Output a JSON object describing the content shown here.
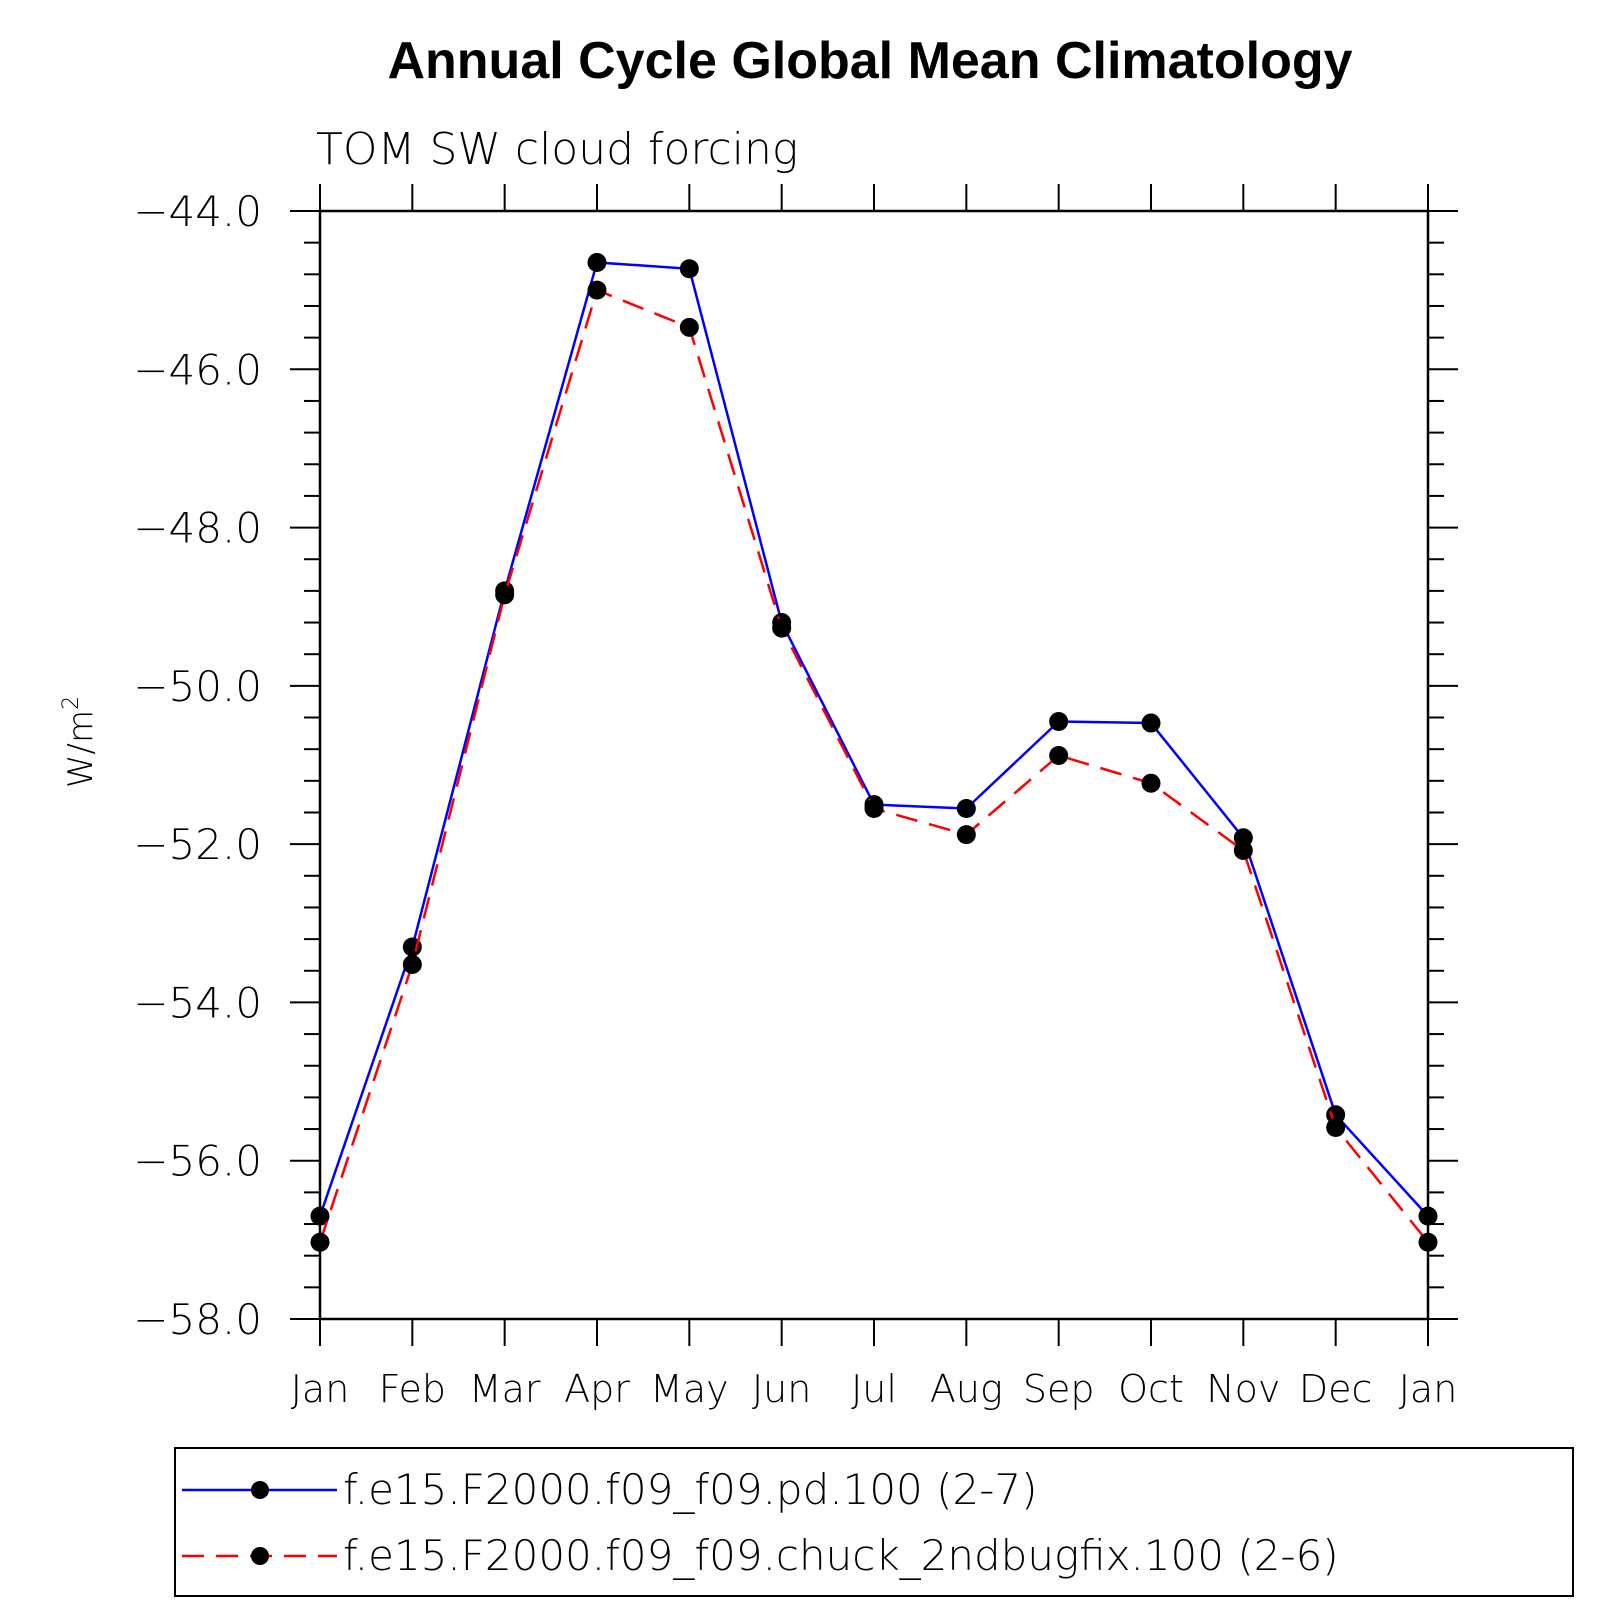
{
  "chart_data": {
    "type": "line",
    "title": "Annual Cycle Global Mean Climatology",
    "subtitle": "TOM SW cloud forcing",
    "ylabel_base": "W/m",
    "ylabel_sup": "2",
    "xlabel": "",
    "categories": [
      "Jan",
      "Feb",
      "Mar",
      "Apr",
      "May",
      "Jun",
      "Jul",
      "Aug",
      "Sep",
      "Oct",
      "Nov",
      "Dec",
      "Jan"
    ],
    "ylim": [
      -58.0,
      -44.0
    ],
    "yticks": [
      "-44.0",
      "-46.0",
      "-48.0",
      "-50.0",
      "-52.0",
      "-54.0",
      "-56.0",
      "-58.0"
    ],
    "ytick_values": [
      -44,
      -46,
      -48,
      -50,
      -52,
      -54,
      -56,
      -58
    ],
    "series": [
      {
        "name": "f.e15.F2000.f09_f09.pd.100 (2-7)",
        "color": "#0000ff",
        "dash": "solid",
        "values": [
          -56.7,
          -53.3,
          -48.8,
          -44.65,
          -44.73,
          -49.2,
          -51.5,
          -51.55,
          -50.45,
          -50.47,
          -51.92,
          -55.42,
          -56.7
        ]
      },
      {
        "name": "f.e15.F2000.f09_f09.chuck_2ndbugfix.100 (2-6)",
        "color": "#ff0000",
        "dash": "dashed",
        "values": [
          -57.03,
          -53.52,
          -48.85,
          -45.0,
          -45.47,
          -49.27,
          -51.55,
          -51.88,
          -50.88,
          -51.23,
          -52.08,
          -55.58,
          -57.03
        ]
      }
    ],
    "legend": "bottom",
    "grid": false
  }
}
